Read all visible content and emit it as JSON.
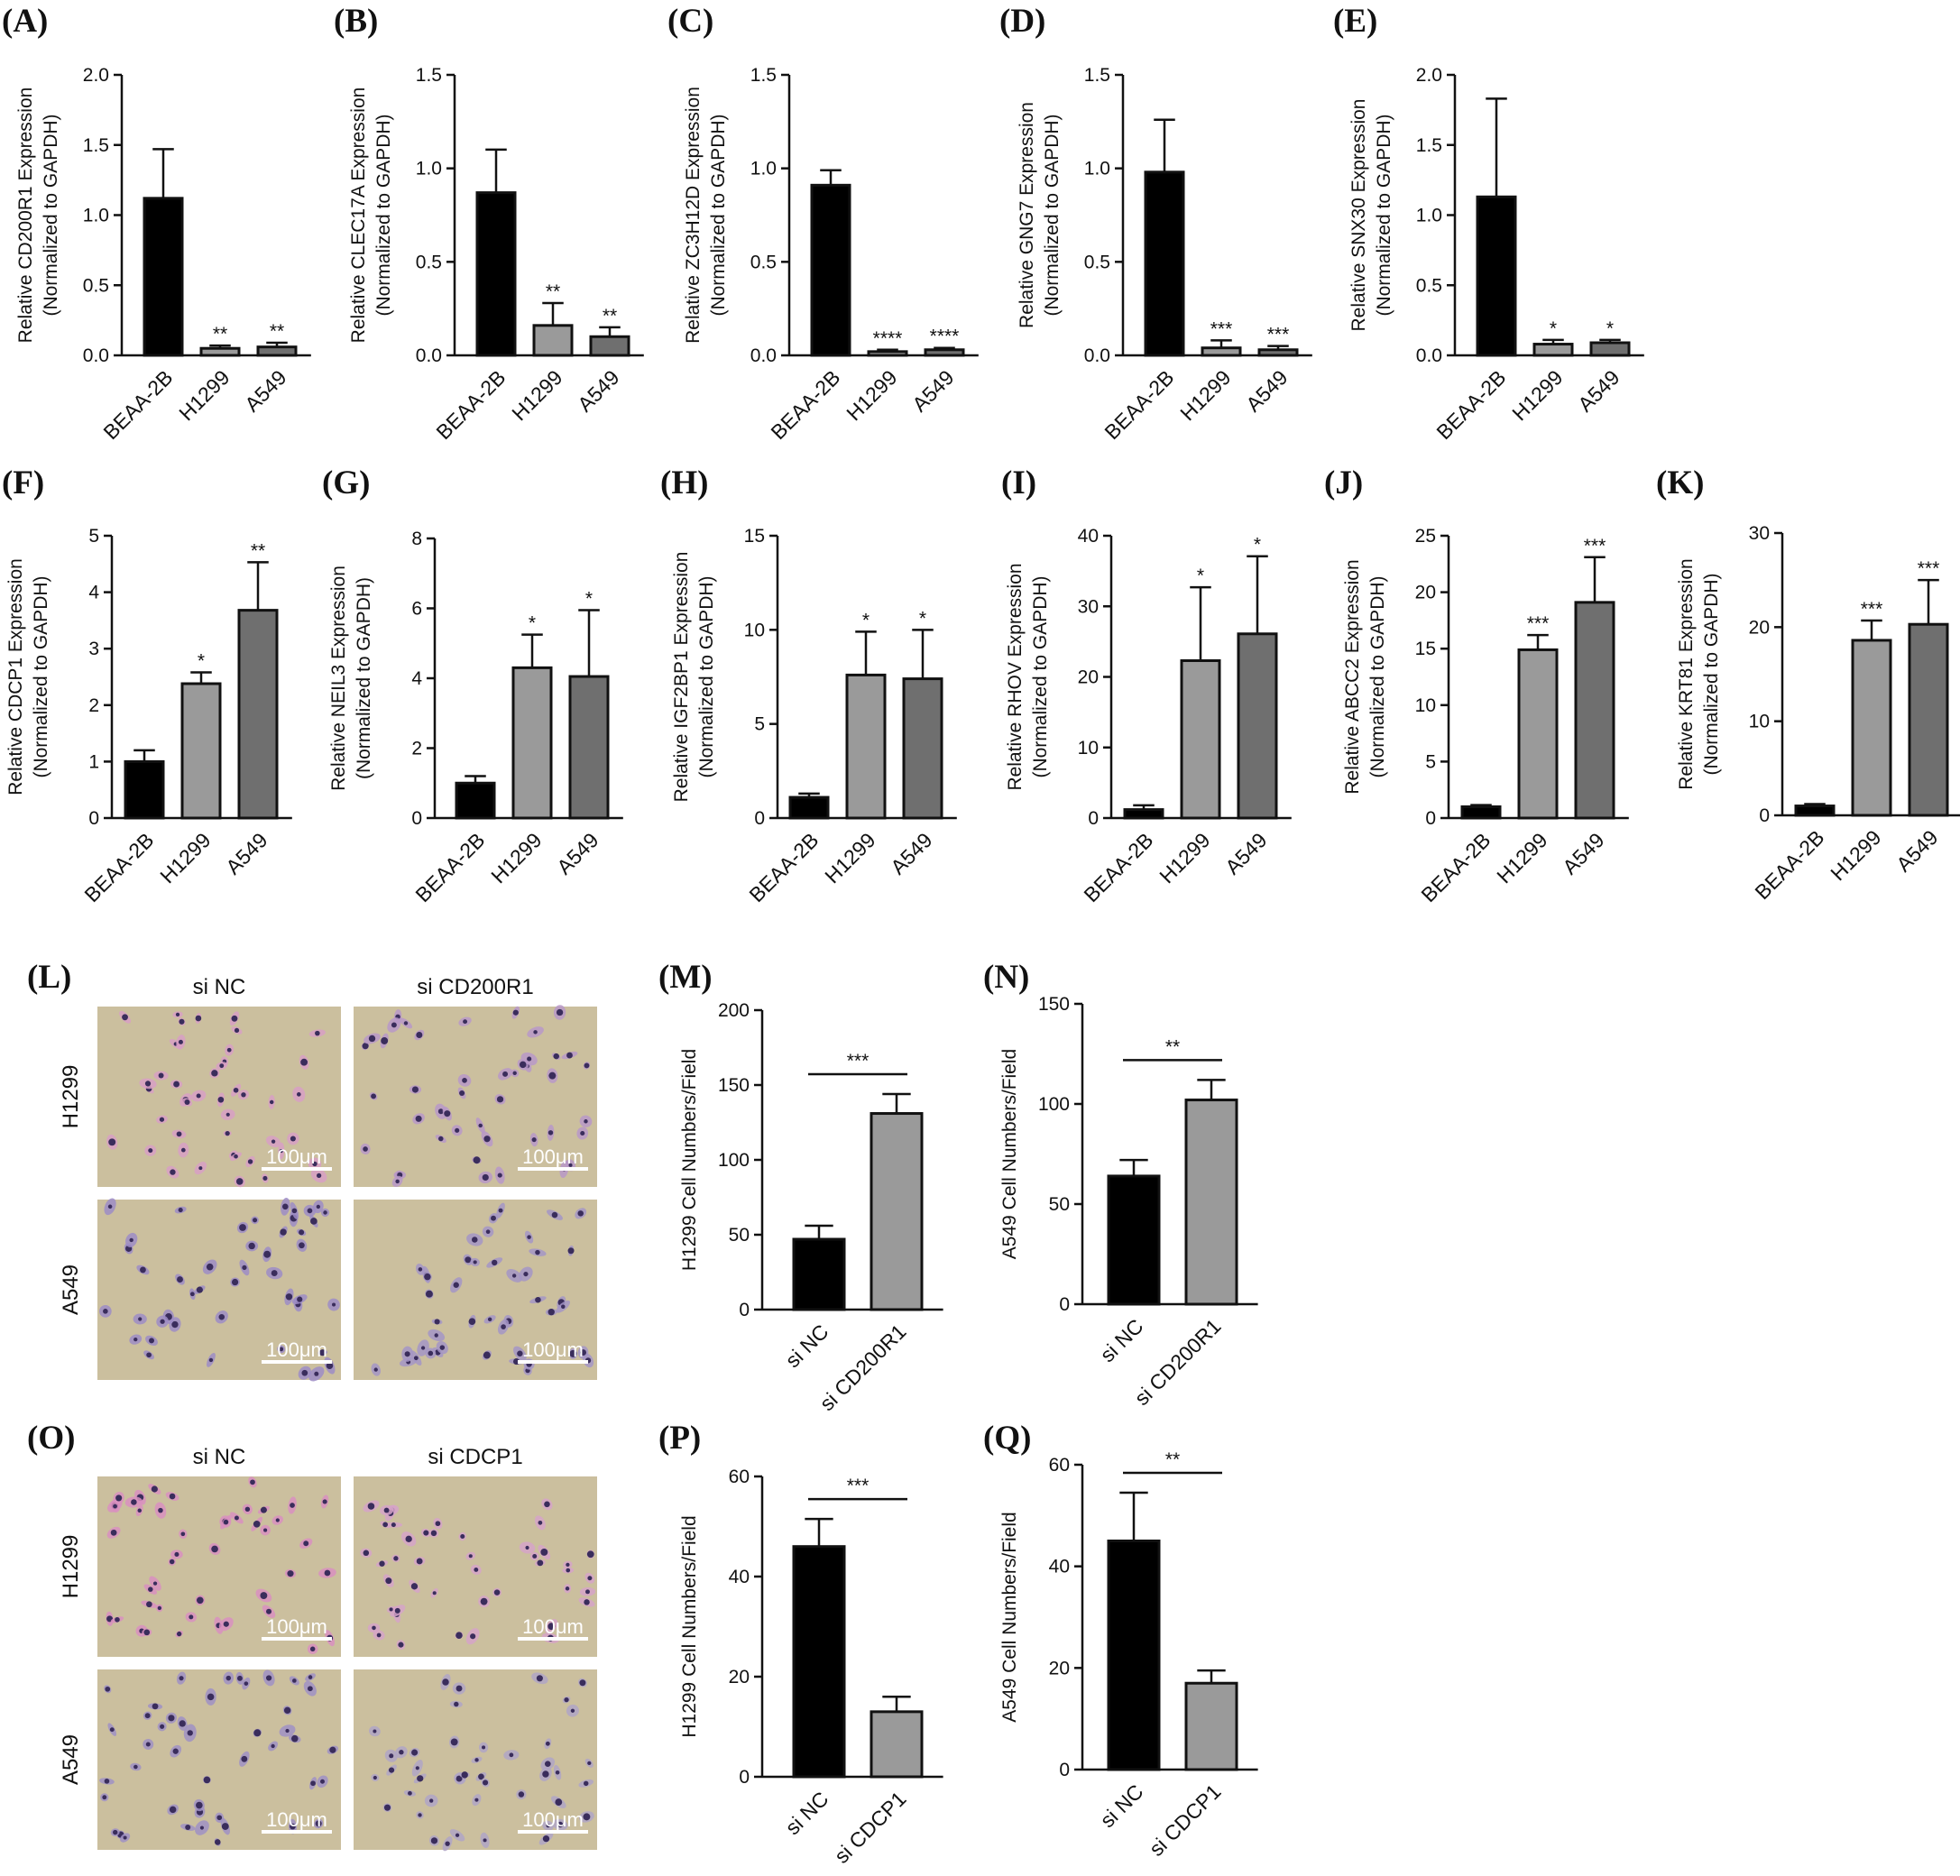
{
  "colors": {
    "BEAA-2B": "#000000",
    "H1299": "#9a9a9a",
    "A549": "#6f6f6f",
    "si_ctrl": "#000000",
    "si_knock": "#9a9a9a"
  },
  "micrographs": [
    {
      "label": "(L)",
      "columns": [
        "si NC",
        "si CD200R1"
      ],
      "rows": [
        "H1299",
        "A549"
      ],
      "scale_bar": "100μm",
      "stain": [
        [
          "#d89fc4",
          "#b898c8"
        ],
        [
          "#9d8cc6",
          "#a495c6"
        ]
      ]
    },
    {
      "label": "(O)",
      "columns": [
        "si NC",
        "si CDCP1"
      ],
      "rows": [
        "H1299",
        "A549"
      ],
      "scale_bar": "100μm",
      "stain": [
        [
          "#d98fc0",
          "#d6a3c8"
        ],
        [
          "#a090c4",
          "#b0a4c6"
        ]
      ]
    }
  ],
  "chart_data": [
    {
      "label": "(A)",
      "type": "bar",
      "ylabel_1": "Relative  CD200R1 Expression",
      "ylabel_2": "(Normalized to GAPDH)",
      "categories": [
        "BEAA-2B",
        "H1299",
        "A549"
      ],
      "values": [
        1.12,
        0.05,
        0.06
      ],
      "errors": [
        0.35,
        0.02,
        0.03
      ],
      "significance": [
        "",
        "**",
        "**"
      ],
      "ylim": [
        0,
        2.0
      ],
      "yticks": [
        "0.0",
        "0.5",
        "1.0",
        "1.5",
        "2.0"
      ]
    },
    {
      "label": "(B)",
      "type": "bar",
      "ylabel_1": "Relative  CLEC17A Expression",
      "ylabel_2": "(Normalized to GAPDH)",
      "categories": [
        "BEAA-2B",
        "H1299",
        "A549"
      ],
      "values": [
        0.87,
        0.16,
        0.1
      ],
      "errors": [
        0.23,
        0.12,
        0.05
      ],
      "significance": [
        "",
        "**",
        "**"
      ],
      "ylim": [
        0,
        1.5
      ],
      "yticks": [
        "0.0",
        "0.5",
        "1.0",
        "1.5"
      ]
    },
    {
      "label": "(C)",
      "type": "bar",
      "ylabel_1": "Relative  ZC3H12D Expression",
      "ylabel_2": "(Normalized to GAPDH)",
      "categories": [
        "BEAA-2B",
        "H1299",
        "A549"
      ],
      "values": [
        0.91,
        0.02,
        0.03
      ],
      "errors": [
        0.08,
        0.01,
        0.01
      ],
      "significance": [
        "",
        "****",
        "****"
      ],
      "ylim": [
        0,
        1.5
      ],
      "yticks": [
        "0.0",
        "0.5",
        "1.0",
        "1.5"
      ]
    },
    {
      "label": "(D)",
      "type": "bar",
      "ylabel_1": "Relative  GNG7 Expression",
      "ylabel_2": "(Normalized to GAPDH)",
      "categories": [
        "BEAA-2B",
        "H1299",
        "A549"
      ],
      "values": [
        0.98,
        0.04,
        0.03
      ],
      "errors": [
        0.28,
        0.04,
        0.02
      ],
      "significance": [
        "",
        "***",
        "***"
      ],
      "ylim": [
        0,
        1.5
      ],
      "yticks": [
        "0.0",
        "0.5",
        "1.0",
        "1.5"
      ]
    },
    {
      "label": "(E)",
      "type": "bar",
      "ylabel_1": "Relative  SNX30 Expression",
      "ylabel_2": "(Normalized to GAPDH)",
      "categories": [
        "BEAA-2B",
        "H1299",
        "A549"
      ],
      "values": [
        1.13,
        0.08,
        0.09
      ],
      "errors": [
        0.7,
        0.03,
        0.02
      ],
      "significance": [
        "",
        "*",
        "*"
      ],
      "ylim": [
        0,
        2.0
      ],
      "yticks": [
        "0.0",
        "0.5",
        "1.0",
        "1.5",
        "2.0"
      ]
    },
    {
      "label": "(F)",
      "type": "bar",
      "ylabel_1": "Relative  CDCP1 Expression",
      "ylabel_2": "(Normalized to GAPDH)",
      "categories": [
        "BEAA-2B",
        "H1299",
        "A549"
      ],
      "values": [
        1.0,
        2.38,
        3.68
      ],
      "errors": [
        0.2,
        0.2,
        0.85
      ],
      "significance": [
        "",
        "*",
        "**"
      ],
      "ylim": [
        0,
        5
      ],
      "yticks": [
        "0",
        "1",
        "2",
        "3",
        "4",
        "5"
      ]
    },
    {
      "label": "(G)",
      "type": "bar",
      "ylabel_1": "Relative  NEIL3 Expression",
      "ylabel_2": "(Normalized to GAPDH)",
      "categories": [
        "BEAA-2B",
        "H1299",
        "A549"
      ],
      "values": [
        1.0,
        4.3,
        4.05
      ],
      "errors": [
        0.2,
        0.95,
        1.9
      ],
      "significance": [
        "",
        "*",
        "*"
      ],
      "ylim": [
        0,
        8
      ],
      "yticks": [
        "0",
        "2",
        "4",
        "6",
        "8"
      ]
    },
    {
      "label": "(H)",
      "type": "bar",
      "ylabel_1": "Relative  IGF2BP1 Expression",
      "ylabel_2": "(Normalized to GAPDH)",
      "categories": [
        "BEAA-2B",
        "H1299",
        "A549"
      ],
      "values": [
        1.1,
        7.6,
        7.4
      ],
      "errors": [
        0.2,
        2.3,
        2.6
      ],
      "significance": [
        "",
        "*",
        "*"
      ],
      "ylim": [
        0,
        15
      ],
      "yticks": [
        "0",
        "5",
        "10",
        "15"
      ]
    },
    {
      "label": "(I)",
      "type": "bar",
      "ylabel_1": "Relative  RHOV Expression",
      "ylabel_2": "(Normalized to GAPDH)",
      "categories": [
        "BEAA-2B",
        "H1299",
        "A549"
      ],
      "values": [
        1.2,
        22.3,
        26.1
      ],
      "errors": [
        0.6,
        10.4,
        11.0
      ],
      "significance": [
        "",
        "*",
        "*"
      ],
      "ylim": [
        0,
        40
      ],
      "yticks": [
        "0",
        "10",
        "20",
        "30",
        "40"
      ]
    },
    {
      "label": "(J)",
      "type": "bar",
      "ylabel_1": "Relative  ABCC2 Expression",
      "ylabel_2": "(Normalized to GAPDH)",
      "categories": [
        "BEAA-2B",
        "H1299",
        "A549"
      ],
      "values": [
        1.0,
        14.9,
        19.1
      ],
      "errors": [
        0.15,
        1.3,
        4.0
      ],
      "significance": [
        "",
        "***",
        "***"
      ],
      "ylim": [
        0,
        25
      ],
      "yticks": [
        "0",
        "5",
        "10",
        "15",
        "20",
        "25"
      ]
    },
    {
      "label": "(K)",
      "type": "bar",
      "ylabel_1": "Relative  KRT81 Expression",
      "ylabel_2": "(Normalized to GAPDH)",
      "categories": [
        "BEAA-2B",
        "H1299",
        "A549"
      ],
      "values": [
        1.0,
        18.6,
        20.3
      ],
      "errors": [
        0.2,
        2.1,
        4.7
      ],
      "significance": [
        "",
        "***",
        "***"
      ],
      "ylim": [
        0,
        30
      ],
      "yticks": [
        "0",
        "10",
        "20",
        "30"
      ]
    },
    {
      "label": "(M)",
      "type": "bar",
      "ylabel_1": "H1299 Cell Numbers/Field",
      "ylabel_2": "",
      "categories": [
        "si NC",
        "si CD200R1"
      ],
      "values": [
        47,
        131
      ],
      "errors": [
        9,
        13
      ],
      "significance": [
        "",
        ""
      ],
      "bracket": "***",
      "ylim": [
        0,
        200
      ],
      "yticks": [
        "0",
        "50",
        "100",
        "150",
        "200"
      ]
    },
    {
      "label": "(N)",
      "type": "bar",
      "ylabel_1": "A549 Cell Numbers/Field",
      "ylabel_2": "",
      "categories": [
        "si NC",
        "si CD200R1"
      ],
      "values": [
        64,
        102
      ],
      "errors": [
        8,
        10
      ],
      "significance": [
        "",
        ""
      ],
      "bracket": "**",
      "ylim": [
        0,
        150
      ],
      "yticks": [
        "0",
        "50",
        "100",
        "150"
      ]
    },
    {
      "label": "(P)",
      "type": "bar",
      "ylabel_1": "H1299 Cell Numbers/Field",
      "ylabel_2": "",
      "categories": [
        "si NC",
        "si CDCP1"
      ],
      "values": [
        46,
        13
      ],
      "errors": [
        5.5,
        3
      ],
      "significance": [
        "",
        ""
      ],
      "bracket": "***",
      "ylim": [
        0,
        60
      ],
      "yticks": [
        "0",
        "20",
        "40",
        "60"
      ]
    },
    {
      "label": "(Q)",
      "type": "bar",
      "ylabel_1": "A549 Cell Numbers/Field",
      "ylabel_2": "",
      "categories": [
        "si NC",
        "si CDCP1"
      ],
      "values": [
        45,
        17
      ],
      "errors": [
        9.5,
        2.5
      ],
      "significance": [
        "",
        ""
      ],
      "bracket": "**",
      "ylim": [
        0,
        60
      ],
      "yticks": [
        "0",
        "20",
        "40",
        "60"
      ]
    }
  ]
}
